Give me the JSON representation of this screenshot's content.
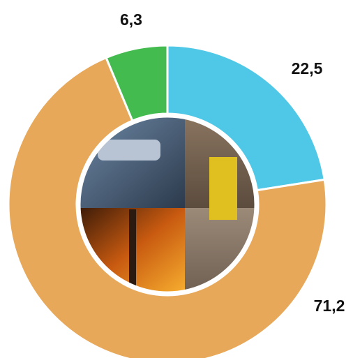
{
  "chart_data": {
    "type": "donut",
    "series": [
      {
        "color": "#4ec8e6",
        "values": [
          22.5
        ],
        "value_labels": [
          "22,5"
        ]
      },
      {
        "color": "#e8a859",
        "values": [
          71.2
        ],
        "value_labels": [
          "71,2"
        ]
      },
      {
        "color": "#44bb4f",
        "values": [
          6.3
        ],
        "value_labels": [
          "6,3"
        ]
      }
    ]
  }
}
